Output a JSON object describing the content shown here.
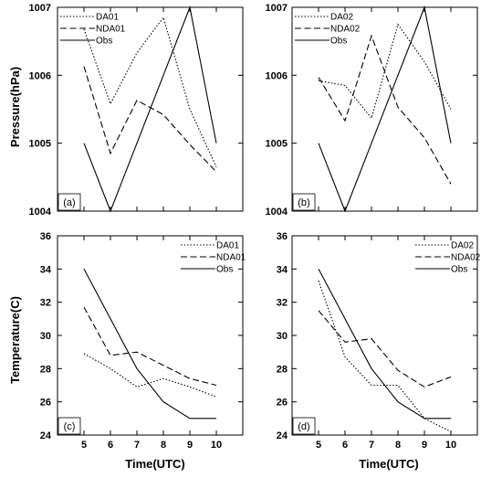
{
  "figure": {
    "y_titles": {
      "pressure": "Pressure(hPa)",
      "temperature": "Temperature(C)"
    },
    "x_title": "Time(UTC)"
  },
  "chart_data": [
    {
      "panel_label": "(a)",
      "type": "line",
      "x": [
        5,
        6,
        7,
        8,
        9,
        10
      ],
      "xlabel": "",
      "ylabel": "Pressure(hPa)",
      "ylim": [
        1004,
        1007
      ],
      "yticks": [
        1004,
        1005,
        1006,
        1007
      ],
      "legend_placement": "top-left",
      "series": [
        {
          "name": "DA01",
          "style": "dotted",
          "values": [
            1006.68,
            1005.58,
            1006.33,
            1006.85,
            1005.5,
            1004.65
          ]
        },
        {
          "name": "NDA01",
          "style": "dashed",
          "values": [
            1006.13,
            1004.85,
            1005.63,
            1005.42,
            1004.98,
            1004.58
          ]
        },
        {
          "name": "Obs",
          "style": "solid",
          "values": [
            1005.0,
            1004.0,
            1005.0,
            1006.0,
            1007.0,
            1005.0
          ]
        }
      ]
    },
    {
      "panel_label": "(b)",
      "type": "line",
      "x": [
        5,
        6,
        7,
        8,
        9,
        10
      ],
      "xlabel": "",
      "ylabel": "",
      "ylim": [
        1004,
        1007
      ],
      "yticks": [
        1004,
        1005,
        1006,
        1007
      ],
      "legend_placement": "top-left",
      "series": [
        {
          "name": "DA02",
          "style": "dotted",
          "values": [
            1005.92,
            1005.85,
            1005.37,
            1006.75,
            1006.2,
            1005.5
          ]
        },
        {
          "name": "NDA02",
          "style": "dashed",
          "values": [
            1005.97,
            1005.33,
            1006.58,
            1005.53,
            1005.08,
            1004.4
          ]
        },
        {
          "name": "Obs",
          "style": "solid",
          "values": [
            1005.0,
            1004.0,
            1005.0,
            1006.0,
            1007.0,
            1005.0
          ]
        }
      ]
    },
    {
      "panel_label": "(c)",
      "type": "line",
      "x": [
        5,
        6,
        7,
        8,
        9,
        10
      ],
      "xlabel": "Time(UTC)",
      "ylabel": "Temperature(C)",
      "ylim": [
        24,
        36
      ],
      "yticks": [
        24,
        26,
        28,
        30,
        32,
        34,
        36
      ],
      "legend_placement": "top-right",
      "series": [
        {
          "name": "DA01",
          "style": "dotted",
          "values": [
            28.9,
            28.0,
            26.9,
            27.4,
            26.9,
            26.3
          ]
        },
        {
          "name": "NDA01",
          "style": "dashed",
          "values": [
            31.7,
            28.8,
            29.0,
            28.2,
            27.4,
            27.0
          ]
        },
        {
          "name": "Obs",
          "style": "solid",
          "values": [
            34.0,
            31.0,
            28.0,
            26.0,
            25.0,
            25.0
          ]
        }
      ]
    },
    {
      "panel_label": "(d)",
      "type": "line",
      "x": [
        5,
        6,
        7,
        8,
        9,
        10
      ],
      "xlabel": "Time(UTC)",
      "ylabel": "",
      "ylim": [
        24,
        36
      ],
      "yticks": [
        24,
        26,
        28,
        30,
        32,
        34,
        36
      ],
      "legend_placement": "top-right",
      "series": [
        {
          "name": "DA02",
          "style": "dotted",
          "values": [
            33.3,
            28.7,
            27.0,
            27.0,
            25.0,
            24.2
          ]
        },
        {
          "name": "NDA02",
          "style": "dashed",
          "values": [
            31.5,
            29.6,
            29.8,
            27.9,
            26.9,
            27.5
          ]
        },
        {
          "name": "Obs",
          "style": "solid",
          "values": [
            34.0,
            31.0,
            28.0,
            26.0,
            25.0,
            25.0
          ]
        }
      ]
    }
  ]
}
